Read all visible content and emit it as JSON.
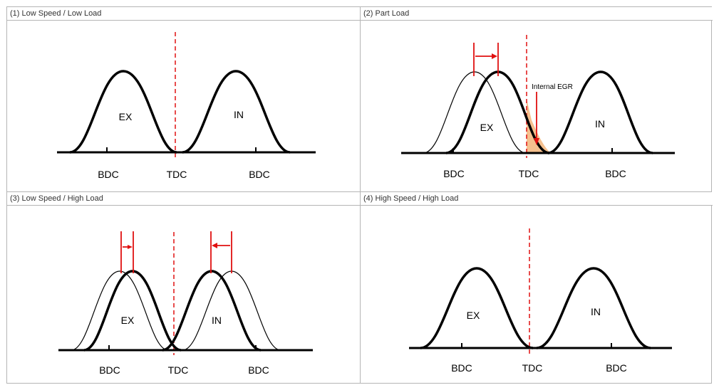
{
  "colors": {
    "timing_line": "#e01010",
    "curve": "#000000",
    "egr_fill": "#f5c08e",
    "border": "#b5b5b5"
  },
  "panels": [
    {
      "title": "(1) Low Speed / Low Load",
      "labels": {
        "ex": "EX",
        "in": "IN",
        "bdc_left": "BDC",
        "tdc": "TDC",
        "bdc_right": "BDC"
      }
    },
    {
      "title": "(2) Part Load",
      "labels": {
        "ex": "EX",
        "in": "IN",
        "bdc_left": "BDC",
        "tdc": "TDC",
        "bdc_right": "BDC",
        "annotation": "Internal EGR"
      }
    },
    {
      "title": "(3) Low Speed / High Load",
      "labels": {
        "ex": "EX",
        "in": "IN",
        "bdc_left": "BDC",
        "tdc": "TDC",
        "bdc_right": "BDC"
      }
    },
    {
      "title": "(4) High Speed / High Load",
      "labels": {
        "ex": "EX",
        "in": "IN",
        "bdc_left": "BDC",
        "tdc": "TDC",
        "bdc_right": "BDC"
      }
    }
  ]
}
